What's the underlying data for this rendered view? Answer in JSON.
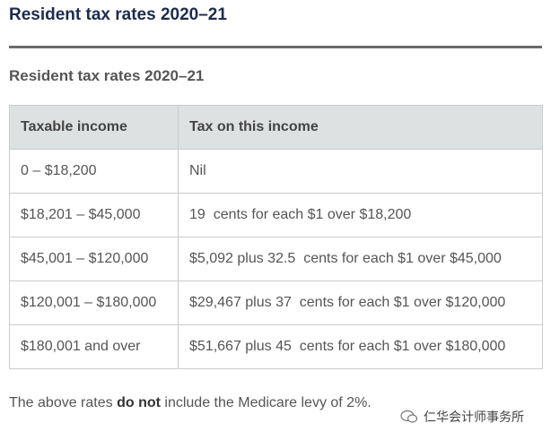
{
  "header": {
    "title": "Resident tax rates 2020–21"
  },
  "subtitle": "Resident tax rates 2020–21",
  "table": {
    "columns": [
      "Taxable income",
      "Tax on this income"
    ],
    "rows": [
      [
        "0 – $18,200",
        "Nil"
      ],
      [
        "$18,201 – $45,000",
        "19  cents for each $1 over $18,200"
      ],
      [
        "$45,001 – $120,000",
        "$5,092 plus 32.5  cents for each $1 over $45,000"
      ],
      [
        "$120,001 – $180,000",
        "$29,467 plus 37  cents for each $1 over $120,000"
      ],
      [
        "$180,001 and over",
        "$51,667 plus 45  cents for each $1 over $180,000"
      ]
    ]
  },
  "note": {
    "before": "The above rates ",
    "bold": "do not",
    "after": " include the Medicare levy of 2%."
  },
  "watermark": "仁华会计师事务所"
}
